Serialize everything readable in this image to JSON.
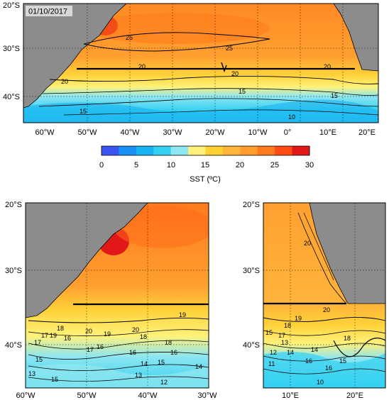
{
  "date_label": "01/10/2017",
  "colorbar": {
    "title": "SST (ºC)",
    "ticks": [
      "0",
      "5",
      "10",
      "15",
      "20",
      "25",
      "30"
    ],
    "colors": [
      "#3a55f0",
      "#1a8ff6",
      "#19b3f1",
      "#33d0f2",
      "#8ee6f0",
      "#fff07a",
      "#ffd032",
      "#ffb43a",
      "#ff9c2c",
      "#ff7a1c",
      "#ff4a14",
      "#e21818"
    ]
  },
  "maps": [
    {
      "id": "top",
      "lat_labels": [
        "20°S",
        "30°S",
        "40°S"
      ],
      "lon_labels": [
        "60°W",
        "50°W",
        "40°W",
        "30°W",
        "20°W",
        "10°W",
        "0°",
        "10°E",
        "20°E"
      ],
      "contour_labels": [
        "25",
        "25",
        "20",
        "20",
        "20",
        "20",
        "15",
        "15",
        "15",
        "10"
      ]
    },
    {
      "id": "bottom-left",
      "lat_labels": [
        "20°S",
        "30°S",
        "40°S"
      ],
      "lon_labels": [
        "60°W",
        "50°W",
        "40°W",
        "30°W"
      ],
      "contour_labels": [
        "20",
        "19",
        "19",
        "20",
        "18",
        "17",
        "19",
        "18",
        "16",
        "16",
        "17",
        "18",
        "16",
        "15",
        "14",
        "13",
        "12",
        "14",
        "15",
        "16",
        "17",
        "15",
        "13"
      ]
    },
    {
      "id": "bottom-right",
      "lat_labels": [
        "20°S",
        "30°S",
        "40°S"
      ],
      "lon_labels": [
        "10°E",
        "20°E"
      ],
      "contour_labels": [
        "20",
        "20",
        "19",
        "18",
        "15",
        "17",
        "16",
        "14",
        "13",
        "12",
        "11",
        "18",
        "10",
        "16",
        "15",
        "14"
      ]
    }
  ]
}
